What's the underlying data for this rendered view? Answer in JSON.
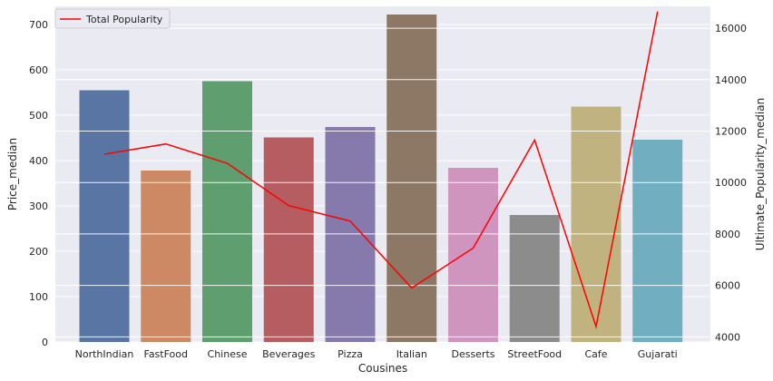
{
  "chart_data": {
    "type": "bar",
    "categories": [
      "NorthIndian",
      "FastFood",
      "Chinese",
      "Beverages",
      "Pizza",
      "Italian",
      "Desserts",
      "StreetFood",
      "Cafe",
      "Gujarati"
    ],
    "bar_series": {
      "name": "Price_median",
      "values": [
        555,
        378,
        575,
        451,
        474,
        722,
        384,
        280,
        519,
        446
      ],
      "colors": [
        "#5875a4",
        "#cc8963",
        "#5f9e6e",
        "#b55d60",
        "#857aab",
        "#8d7866",
        "#d095bf",
        "#8c8c8c",
        "#c1b37f",
        "#71aec0"
      ]
    },
    "line_series": {
      "name": "Total Popularity",
      "values": [
        11100,
        11500,
        10750,
        9100,
        8500,
        5900,
        7450,
        11650,
        4400,
        16650
      ],
      "color": "#ff0000"
    },
    "xlabel": "Cousines",
    "ylabel": "Price_median",
    "y2label": "Ultimate_Popularity_median",
    "ylim": [
      0,
      740
    ],
    "y2lim": [
      3800,
      16850
    ],
    "yticks": [
      0,
      100,
      200,
      300,
      400,
      500,
      600,
      700
    ],
    "y2ticks": [
      4000,
      6000,
      8000,
      10000,
      12000,
      14000,
      16000
    ],
    "legend": {
      "label": "Total Popularity",
      "position": "top-left"
    },
    "grid": true,
    "style": {
      "background": "#eaeaf2",
      "grid_color": "#ffffff"
    }
  }
}
